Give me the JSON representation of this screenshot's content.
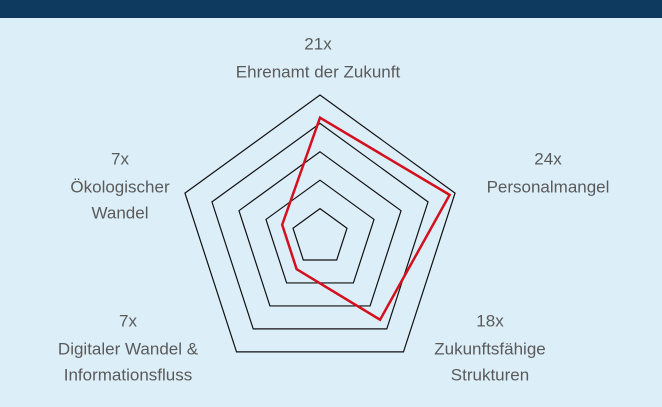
{
  "chart_data": {
    "type": "radar",
    "categories": [
      [
        "Ehrenamt der Zukunft"
      ],
      [
        "Personalmangel"
      ],
      [
        "Zukunftsfähige",
        "Strukturen"
      ],
      [
        "Digitaler Wandel &",
        "Informationsfluss"
      ],
      [
        "Ökologischer",
        "Wandel"
      ]
    ],
    "values": [
      21,
      24,
      18,
      7,
      7
    ],
    "value_labels": [
      "21x",
      "24x",
      "18x",
      "7x",
      "7x"
    ],
    "color": "#d3111e",
    "rlim": [
      0,
      25
    ],
    "rticks": [
      5,
      10,
      15,
      20,
      25
    ],
    "grid": true
  }
}
